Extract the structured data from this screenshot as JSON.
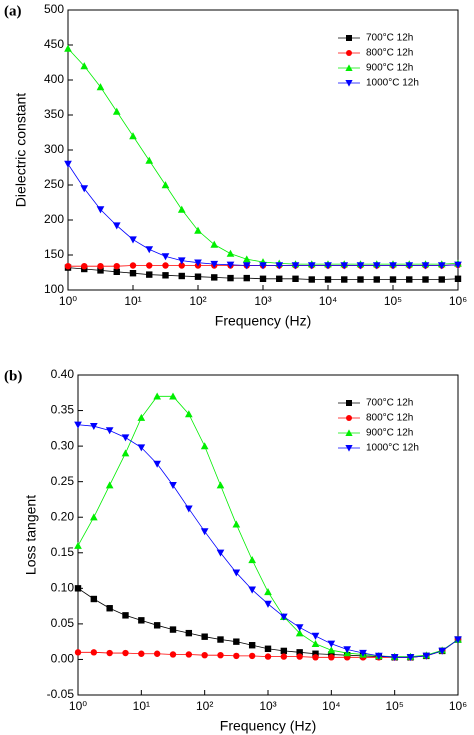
{
  "chart_data": [
    {
      "type": "scatter",
      "panel_label": "(a)",
      "xlabel": "Frequency (Hz)",
      "ylabel": "Dielectric constant",
      "xlog": true,
      "xlim": [
        1,
        1000000
      ],
      "xticks": [
        {
          "value": 1,
          "label": "10⁰"
        },
        {
          "value": 10,
          "label": "10¹"
        },
        {
          "value": 100,
          "label": "10²"
        },
        {
          "value": 1000,
          "label": "10³"
        },
        {
          "value": 10000,
          "label": "10⁴"
        },
        {
          "value": 100000,
          "label": "10⁵"
        },
        {
          "value": 1000000,
          "label": "10⁶"
        }
      ],
      "ylim": [
        100,
        500
      ],
      "yticks": [
        100,
        150,
        200,
        250,
        300,
        350,
        400,
        450,
        500
      ],
      "legend": "upper right",
      "x": [
        1,
        1.778,
        3.162,
        5.623,
        10,
        17.78,
        31.62,
        56.23,
        100,
        177.8,
        316.2,
        562.3,
        1000,
        1778,
        3162,
        5623,
        10000,
        17780,
        31620,
        56230,
        100000,
        177800,
        316200,
        562300,
        1000000
      ],
      "series": [
        {
          "name": "700°C 12h",
          "color": "#000000",
          "marker": "square",
          "values": [
            132,
            130,
            128,
            126,
            124,
            122,
            121,
            120,
            119,
            118,
            117,
            117,
            116,
            116,
            116,
            115,
            115,
            115,
            115,
            115,
            115,
            115,
            115,
            115,
            116
          ]
        },
        {
          "name": "800°C 12h",
          "color": "#ff0000",
          "marker": "circle",
          "values": [
            134,
            134,
            134,
            134,
            135,
            135,
            135,
            135,
            135,
            135,
            135,
            135,
            135,
            135,
            135,
            135,
            135,
            135,
            135,
            135,
            135,
            135,
            135,
            135,
            136
          ]
        },
        {
          "name": "900°C 12h",
          "color": "#00ee00",
          "marker": "triangle-up",
          "values": [
            445,
            420,
            390,
            355,
            320,
            285,
            250,
            215,
            185,
            165,
            152,
            144,
            140,
            138,
            137,
            137,
            137,
            137,
            137,
            137,
            137,
            137,
            137,
            137,
            138
          ]
        },
        {
          "name": "1000°C 12h",
          "color": "#0000ff",
          "marker": "triangle-down",
          "values": [
            280,
            245,
            215,
            192,
            172,
            158,
            148,
            142,
            139,
            137,
            136,
            135,
            135,
            135,
            135,
            135,
            135,
            135,
            135,
            135,
            135,
            135,
            135,
            135,
            136
          ]
        }
      ]
    },
    {
      "type": "scatter",
      "panel_label": "(b)",
      "xlabel": "Frequency (Hz)",
      "ylabel": "Loss tangent",
      "xlog": true,
      "xlim": [
        1,
        1000000
      ],
      "xticks": [
        {
          "value": 1,
          "label": "10⁰"
        },
        {
          "value": 10,
          "label": "10¹"
        },
        {
          "value": 100,
          "label": "10²"
        },
        {
          "value": 1000,
          "label": "10³"
        },
        {
          "value": 10000,
          "label": "10⁴"
        },
        {
          "value": 100000,
          "label": "10⁵"
        },
        {
          "value": 1000000,
          "label": "10⁶"
        }
      ],
      "ylim": [
        -0.05,
        0.4
      ],
      "yticks": [
        -0.05,
        {
          "value": 0,
          "label": "0.00"
        },
        0.05,
        {
          "value": 0.1,
          "label": "0.10"
        },
        0.15,
        {
          "value": 0.2,
          "label": "0.20"
        },
        0.25,
        {
          "value": 0.3,
          "label": "0.30"
        },
        0.35,
        {
          "value": 0.4,
          "label": "0.40"
        }
      ],
      "legend": "upper right",
      "x": [
        1,
        1.778,
        3.162,
        5.623,
        10,
        17.78,
        31.62,
        56.23,
        100,
        177.8,
        316.2,
        562.3,
        1000,
        1778,
        3162,
        5623,
        10000,
        17780,
        31620,
        56230,
        100000,
        177800,
        316200,
        562300,
        1000000
      ],
      "series": [
        {
          "name": "700°C 12h",
          "color": "#000000",
          "marker": "square",
          "values": [
            0.1,
            0.085,
            0.072,
            0.062,
            0.055,
            0.048,
            0.042,
            0.037,
            0.032,
            0.028,
            0.025,
            0.02,
            0.015,
            0.012,
            0.01,
            0.008,
            0.007,
            0.006,
            0.005,
            0.004,
            0.003,
            0.003,
            0.005,
            0.012,
            0.028
          ]
        },
        {
          "name": "800°C 12h",
          "color": "#ff0000",
          "marker": "circle",
          "values": [
            0.01,
            0.01,
            0.009,
            0.009,
            0.008,
            0.008,
            0.007,
            0.007,
            0.006,
            0.006,
            0.005,
            0.005,
            0.004,
            0.004,
            0.004,
            0.003,
            0.003,
            0.003,
            0.003,
            0.003,
            0.003,
            0.003,
            0.005,
            0.012,
            0.028
          ]
        },
        {
          "name": "900°C 12h",
          "color": "#00ee00",
          "marker": "triangle-up",
          "values": [
            0.16,
            0.2,
            0.245,
            0.29,
            0.34,
            0.37,
            0.37,
            0.345,
            0.3,
            0.245,
            0.19,
            0.14,
            0.095,
            0.06,
            0.037,
            0.022,
            0.013,
            0.009,
            0.007,
            0.005,
            0.004,
            0.004,
            0.006,
            0.013,
            0.028
          ]
        },
        {
          "name": "1000°C 12h",
          "color": "#0000ff",
          "marker": "triangle-down",
          "values": [
            0.33,
            0.328,
            0.322,
            0.312,
            0.298,
            0.275,
            0.245,
            0.212,
            0.18,
            0.15,
            0.122,
            0.098,
            0.078,
            0.06,
            0.045,
            0.033,
            0.022,
            0.014,
            0.009,
            0.005,
            0.003,
            0.003,
            0.005,
            0.012,
            0.028
          ]
        }
      ]
    }
  ]
}
